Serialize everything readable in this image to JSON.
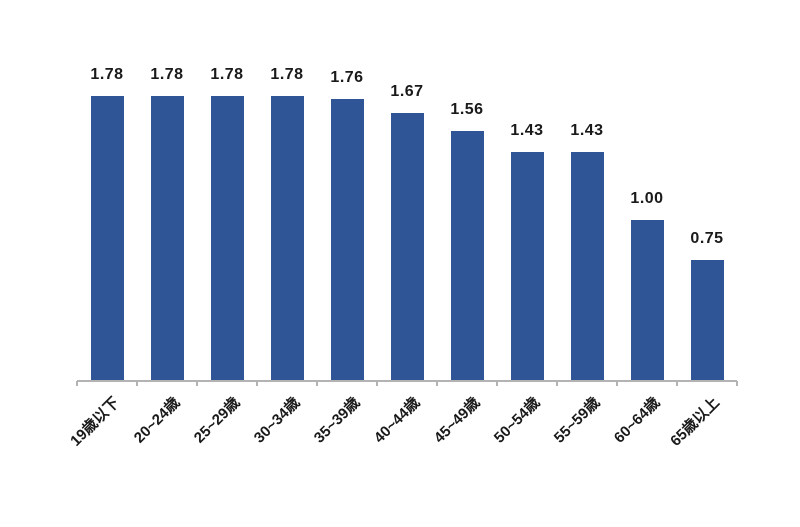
{
  "chart_data": {
    "type": "bar",
    "categories": [
      "19歳以下",
      "20~24歳",
      "25~29歳",
      "30~34歳",
      "35~39歳",
      "40~44歳",
      "45~49歳",
      "50~54歳",
      "55~59歳",
      "60~64歳",
      "65歳以上"
    ],
    "values": [
      1.78,
      1.78,
      1.78,
      1.78,
      1.76,
      1.67,
      1.56,
      1.43,
      1.43,
      1.0,
      0.75
    ],
    "value_labels": [
      "1.78",
      "1.78",
      "1.78",
      "1.78",
      "1.76",
      "1.67",
      "1.56",
      "1.43",
      "1.43",
      "1.00",
      "0.75"
    ],
    "title": "",
    "xlabel": "",
    "ylabel": "",
    "grid": false,
    "legend": "none",
    "colors": {
      "bar": "#2F5596",
      "axis": "#B3B3B3",
      "label": "#1A1A1A",
      "background": "#FFFFFF"
    }
  }
}
